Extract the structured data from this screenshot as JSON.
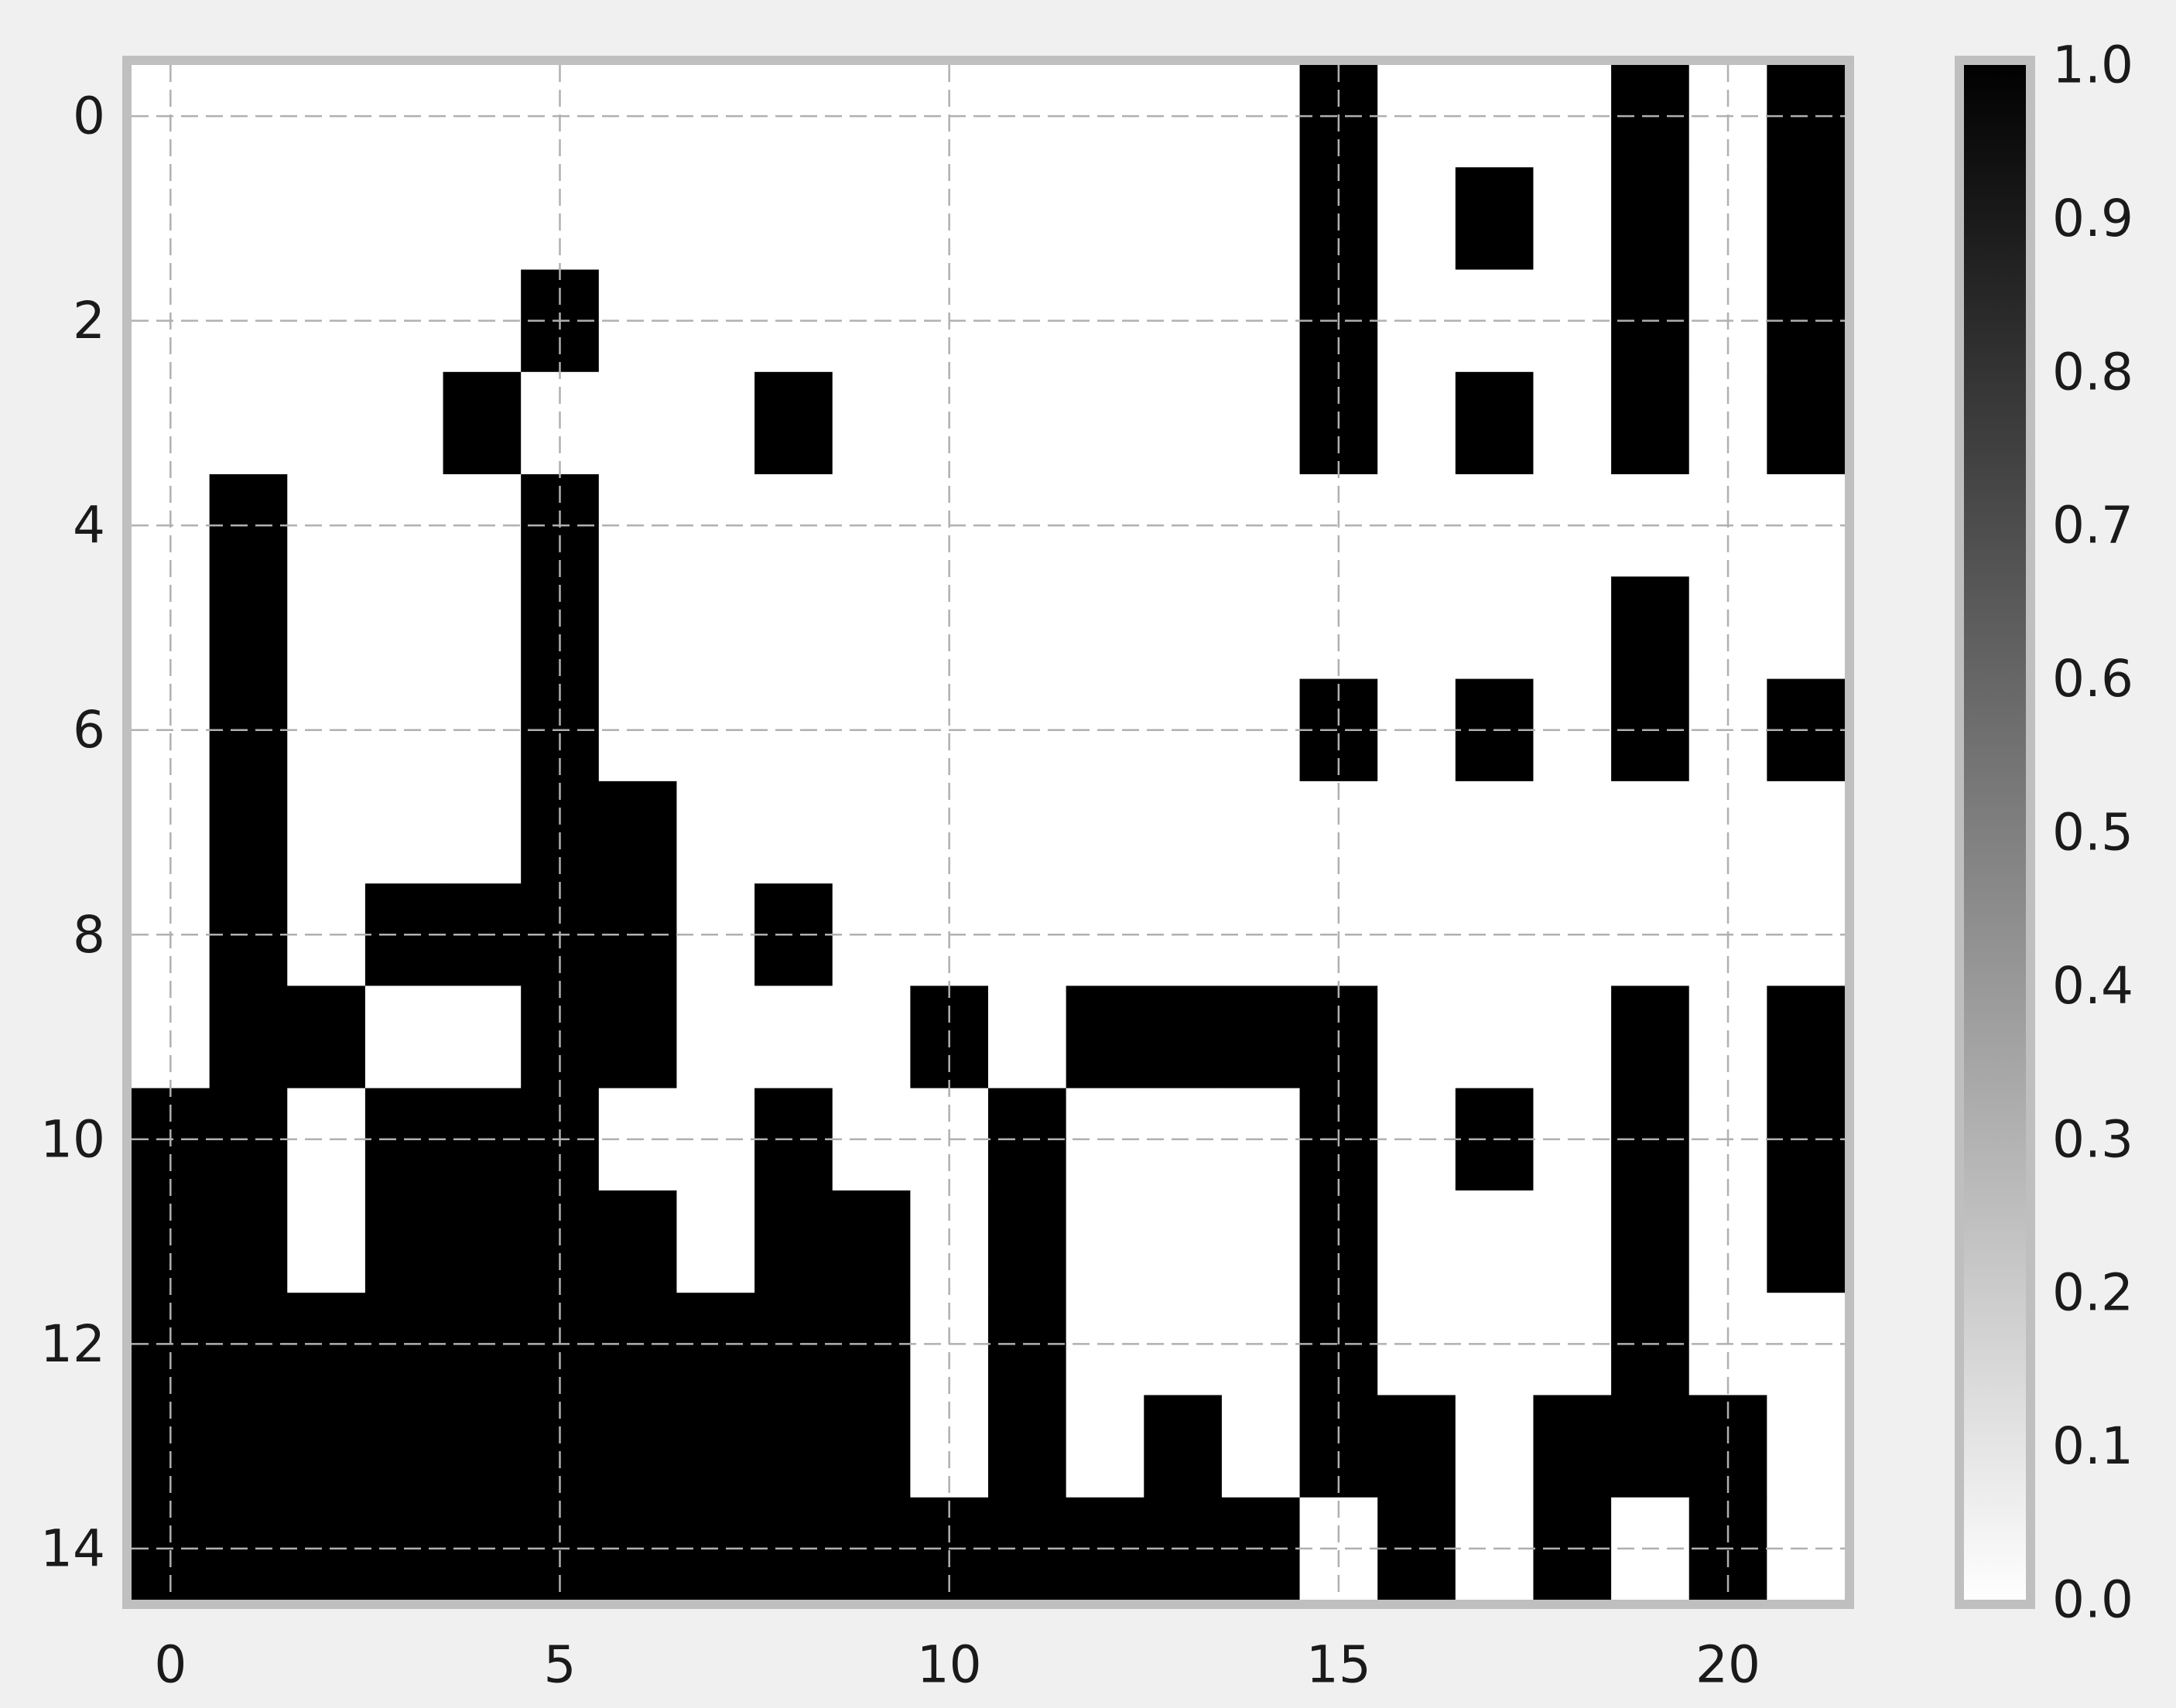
{
  "chart_data": {
    "type": "heatmap",
    "title": "",
    "xlabel": "",
    "ylabel": "",
    "colormap": "gray_r",
    "vmin": 0.0,
    "vmax": 1.0,
    "x_ticks": [
      "0",
      "5",
      "10",
      "15",
      "20"
    ],
    "y_ticks": [
      "0",
      "2",
      "4",
      "6",
      "8",
      "10",
      "12",
      "14"
    ],
    "colorbar_ticks": [
      "0.0",
      "0.1",
      "0.2",
      "0.3",
      "0.4",
      "0.5",
      "0.6",
      "0.7",
      "0.8",
      "0.9",
      "1.0"
    ],
    "grid": true,
    "n_rows": 15,
    "n_cols": 22,
    "values": [
      [
        0,
        0,
        0,
        0,
        0,
        0,
        0,
        0,
        0,
        0,
        0,
        0,
        0,
        0,
        0,
        1,
        0,
        0,
        0,
        1,
        0,
        1
      ],
      [
        0,
        0,
        0,
        0,
        0,
        0,
        0,
        0,
        0,
        0,
        0,
        0,
        0,
        0,
        0,
        1,
        0,
        1,
        0,
        1,
        0,
        1
      ],
      [
        0,
        0,
        0,
        0,
        0,
        1,
        0,
        0,
        0,
        0,
        0,
        0,
        0,
        0,
        0,
        1,
        0,
        0,
        0,
        1,
        0,
        1
      ],
      [
        0,
        0,
        0,
        0,
        1,
        0,
        0,
        0,
        1,
        0,
        0,
        0,
        0,
        0,
        0,
        1,
        0,
        1,
        0,
        1,
        0,
        1
      ],
      [
        0,
        1,
        0,
        0,
        0,
        1,
        0,
        0,
        0,
        0,
        0,
        0,
        0,
        0,
        0,
        0,
        0,
        0,
        0,
        0,
        0,
        0
      ],
      [
        0,
        1,
        0,
        0,
        0,
        1,
        0,
        0,
        0,
        0,
        0,
        0,
        0,
        0,
        0,
        0,
        0,
        0,
        0,
        1,
        0,
        0
      ],
      [
        0,
        1,
        0,
        0,
        0,
        1,
        0,
        0,
        0,
        0,
        0,
        0,
        0,
        0,
        0,
        1,
        0,
        1,
        0,
        1,
        0,
        1
      ],
      [
        0,
        1,
        0,
        0,
        0,
        1,
        1,
        0,
        0,
        0,
        0,
        0,
        0,
        0,
        0,
        0,
        0,
        0,
        0,
        0,
        0,
        0
      ],
      [
        0,
        1,
        0,
        1,
        1,
        1,
        1,
        0,
        1,
        0,
        0,
        0,
        0,
        0,
        0,
        0,
        0,
        0,
        0,
        0,
        0,
        0
      ],
      [
        0,
        1,
        1,
        0,
        0,
        1,
        1,
        0,
        0,
        0,
        1,
        0,
        1,
        1,
        1,
        1,
        0,
        0,
        0,
        1,
        0,
        1
      ],
      [
        1,
        1,
        0,
        1,
        1,
        1,
        0,
        0,
        1,
        0,
        0,
        1,
        0,
        0,
        0,
        1,
        0,
        1,
        0,
        1,
        0,
        1
      ],
      [
        1,
        1,
        0,
        1,
        1,
        1,
        1,
        0,
        1,
        1,
        0,
        1,
        0,
        0,
        0,
        1,
        0,
        0,
        0,
        1,
        0,
        1
      ],
      [
        1,
        1,
        1,
        1,
        1,
        1,
        1,
        1,
        1,
        1,
        0,
        1,
        0,
        0,
        0,
        1,
        0,
        0,
        0,
        1,
        0,
        0
      ],
      [
        1,
        1,
        1,
        1,
        1,
        1,
        1,
        1,
        1,
        1,
        0,
        1,
        0,
        1,
        0,
        1,
        1,
        0,
        1,
        1,
        1,
        0
      ],
      [
        1,
        1,
        1,
        1,
        1,
        1,
        1,
        1,
        1,
        1,
        1,
        1,
        1,
        1,
        1,
        0,
        1,
        0,
        1,
        0,
        1,
        0
      ]
    ]
  }
}
